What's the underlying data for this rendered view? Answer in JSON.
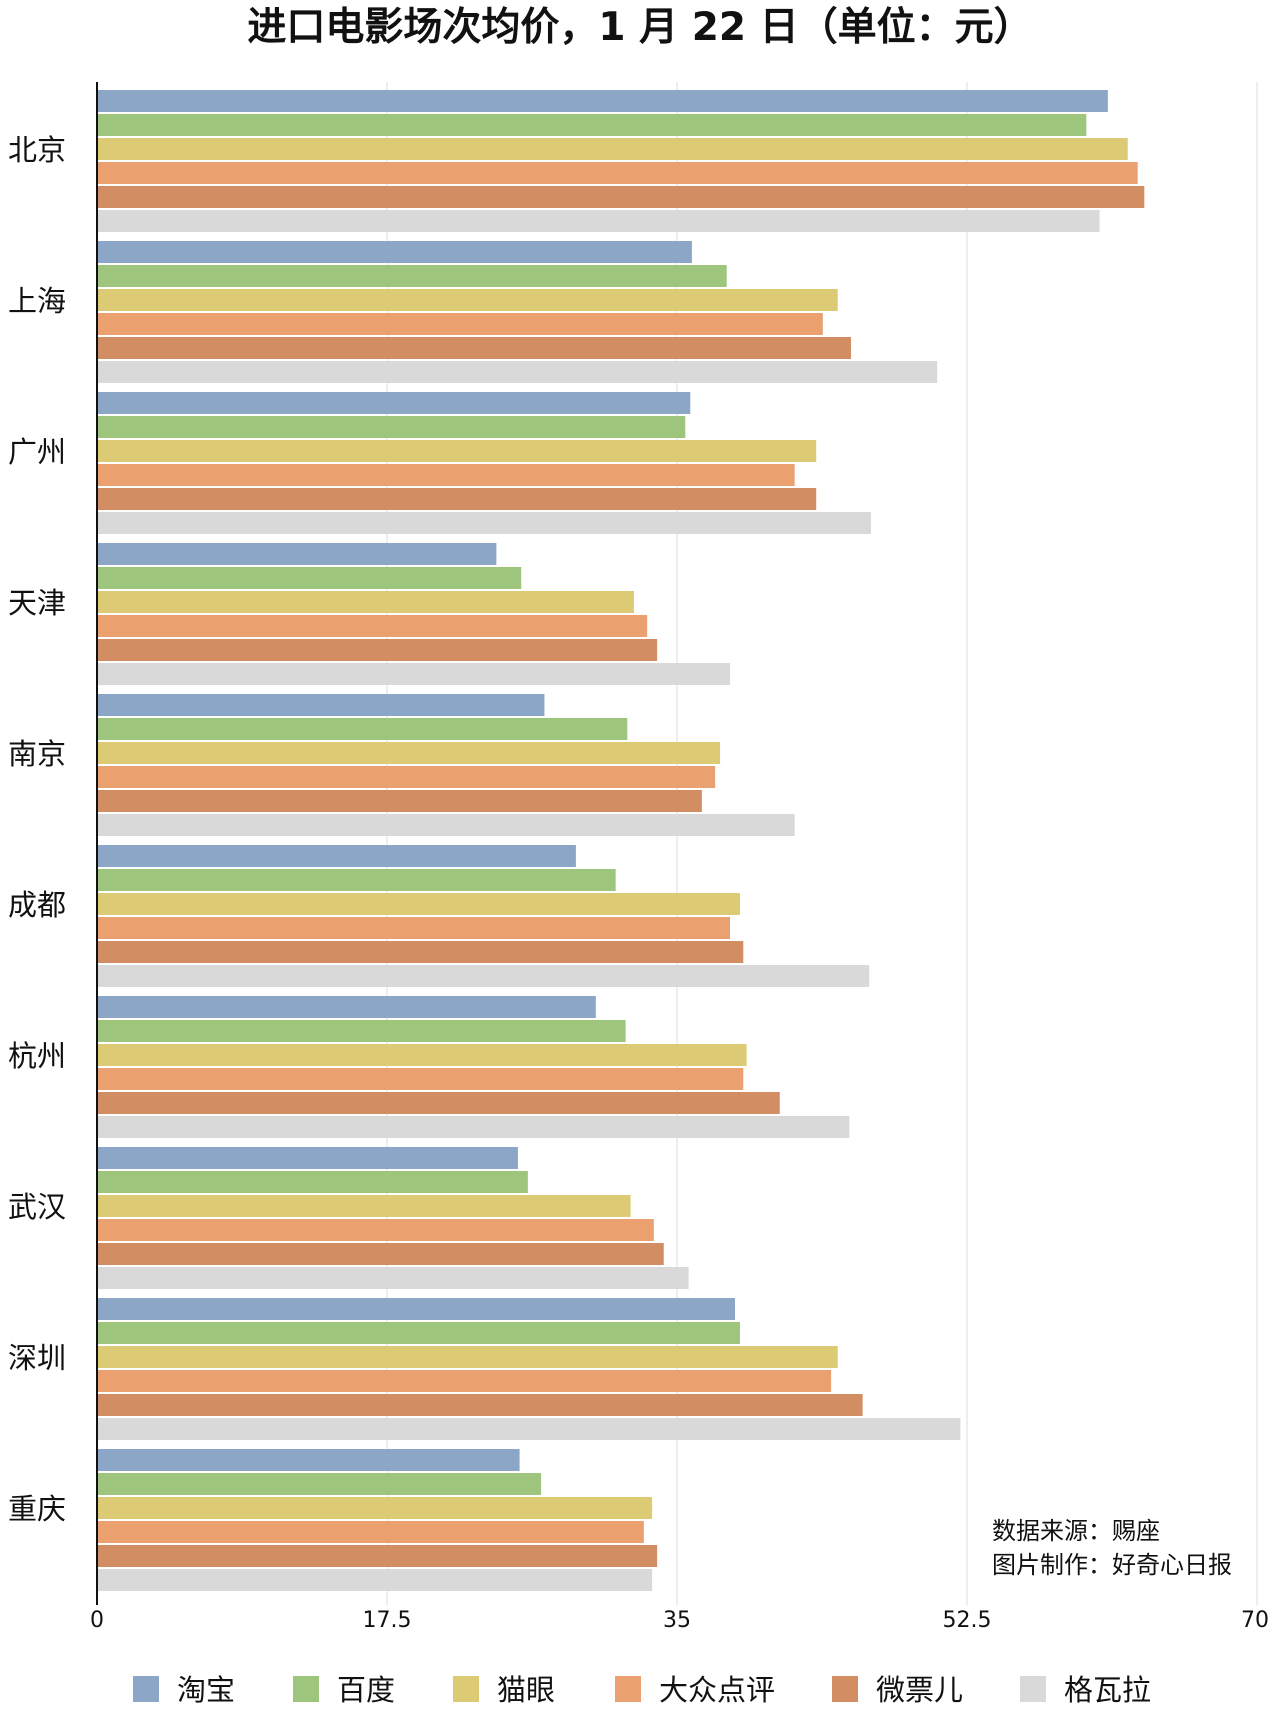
{
  "chart_data": {
    "type": "bar",
    "orientation": "horizontal",
    "title": "进口电影场次均价，1 月 22 日（单位：元）",
    "categories": [
      "北京",
      "上海",
      "广州",
      "天津",
      "南京",
      "成都",
      "杭州",
      "武汉",
      "深圳",
      "重庆"
    ],
    "series": [
      {
        "name": "淘宝",
        "color": "#8BA6C7",
        "values": [
          61.0,
          35.9,
          35.8,
          24.1,
          27.0,
          28.9,
          30.1,
          25.4,
          38.5,
          25.5
        ]
      },
      {
        "name": "百度",
        "color": "#9DC67C",
        "values": [
          59.7,
          38.0,
          35.5,
          25.6,
          32.0,
          31.3,
          31.9,
          26.0,
          38.8,
          26.8
        ]
      },
      {
        "name": "猫眼",
        "color": "#DCCA75",
        "values": [
          62.2,
          44.7,
          43.4,
          32.4,
          37.6,
          38.8,
          39.2,
          32.2,
          44.7,
          33.5
        ]
      },
      {
        "name": "大众点评",
        "color": "#EBA070",
        "values": [
          62.8,
          43.8,
          42.1,
          33.2,
          37.3,
          38.2,
          39.0,
          33.6,
          44.3,
          33.0
        ]
      },
      {
        "name": "微票儿",
        "color": "#D38D62",
        "values": [
          63.2,
          45.5,
          43.4,
          33.8,
          36.5,
          39.0,
          41.2,
          34.2,
          46.2,
          33.8
        ]
      },
      {
        "name": "格瓦拉",
        "color": "#D9D9D9",
        "values": [
          60.5,
          50.7,
          46.7,
          38.2,
          42.1,
          46.6,
          45.4,
          35.7,
          52.1,
          33.5
        ]
      }
    ],
    "xlim": [
      0,
      70
    ],
    "xticks": [
      "0",
      "17.5",
      "35",
      "52.5",
      "70"
    ],
    "grid": true,
    "legend": "bottom",
    "notes": [
      "数据来源：赐座",
      "图片制作：好奇心日报"
    ]
  }
}
